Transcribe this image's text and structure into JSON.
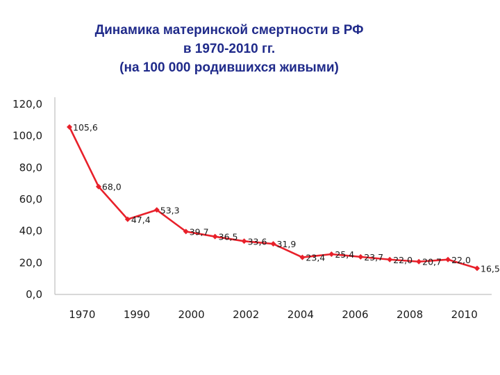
{
  "chart_data": {
    "type": "line",
    "title_lines": [
      "Динамика материнской смертности в РФ",
      "в 1970-2010 гг.",
      "(на 100 000 родившихся живыми)"
    ],
    "xlabel": "",
    "ylabel": "",
    "ylim": [
      0,
      120
    ],
    "y_ticks": [
      "0,0",
      "20,0",
      "40,0",
      "60,0",
      "80,0",
      "100,0",
      "120,0"
    ],
    "x_ticks": [
      "1970",
      "1990",
      "2000",
      "2002",
      "2004",
      "2006",
      "2008",
      "2010"
    ],
    "grid": false,
    "color": "#e8202a",
    "series": [
      {
        "values": [
          105.6,
          68.0,
          47.4,
          53.3,
          39.7,
          36.5,
          33.6,
          31.9,
          23.4,
          25.4,
          23.7,
          22.0,
          20.7,
          22.0,
          16.5
        ],
        "labels": [
          "105,6",
          "68,0",
          "47,4",
          "53,3",
          "39,7",
          "36,5",
          "33,6",
          "31,9",
          "23,4",
          "25,4",
          "23,7",
          "22,0",
          "20,7",
          "22,0",
          "16,5"
        ]
      }
    ]
  }
}
